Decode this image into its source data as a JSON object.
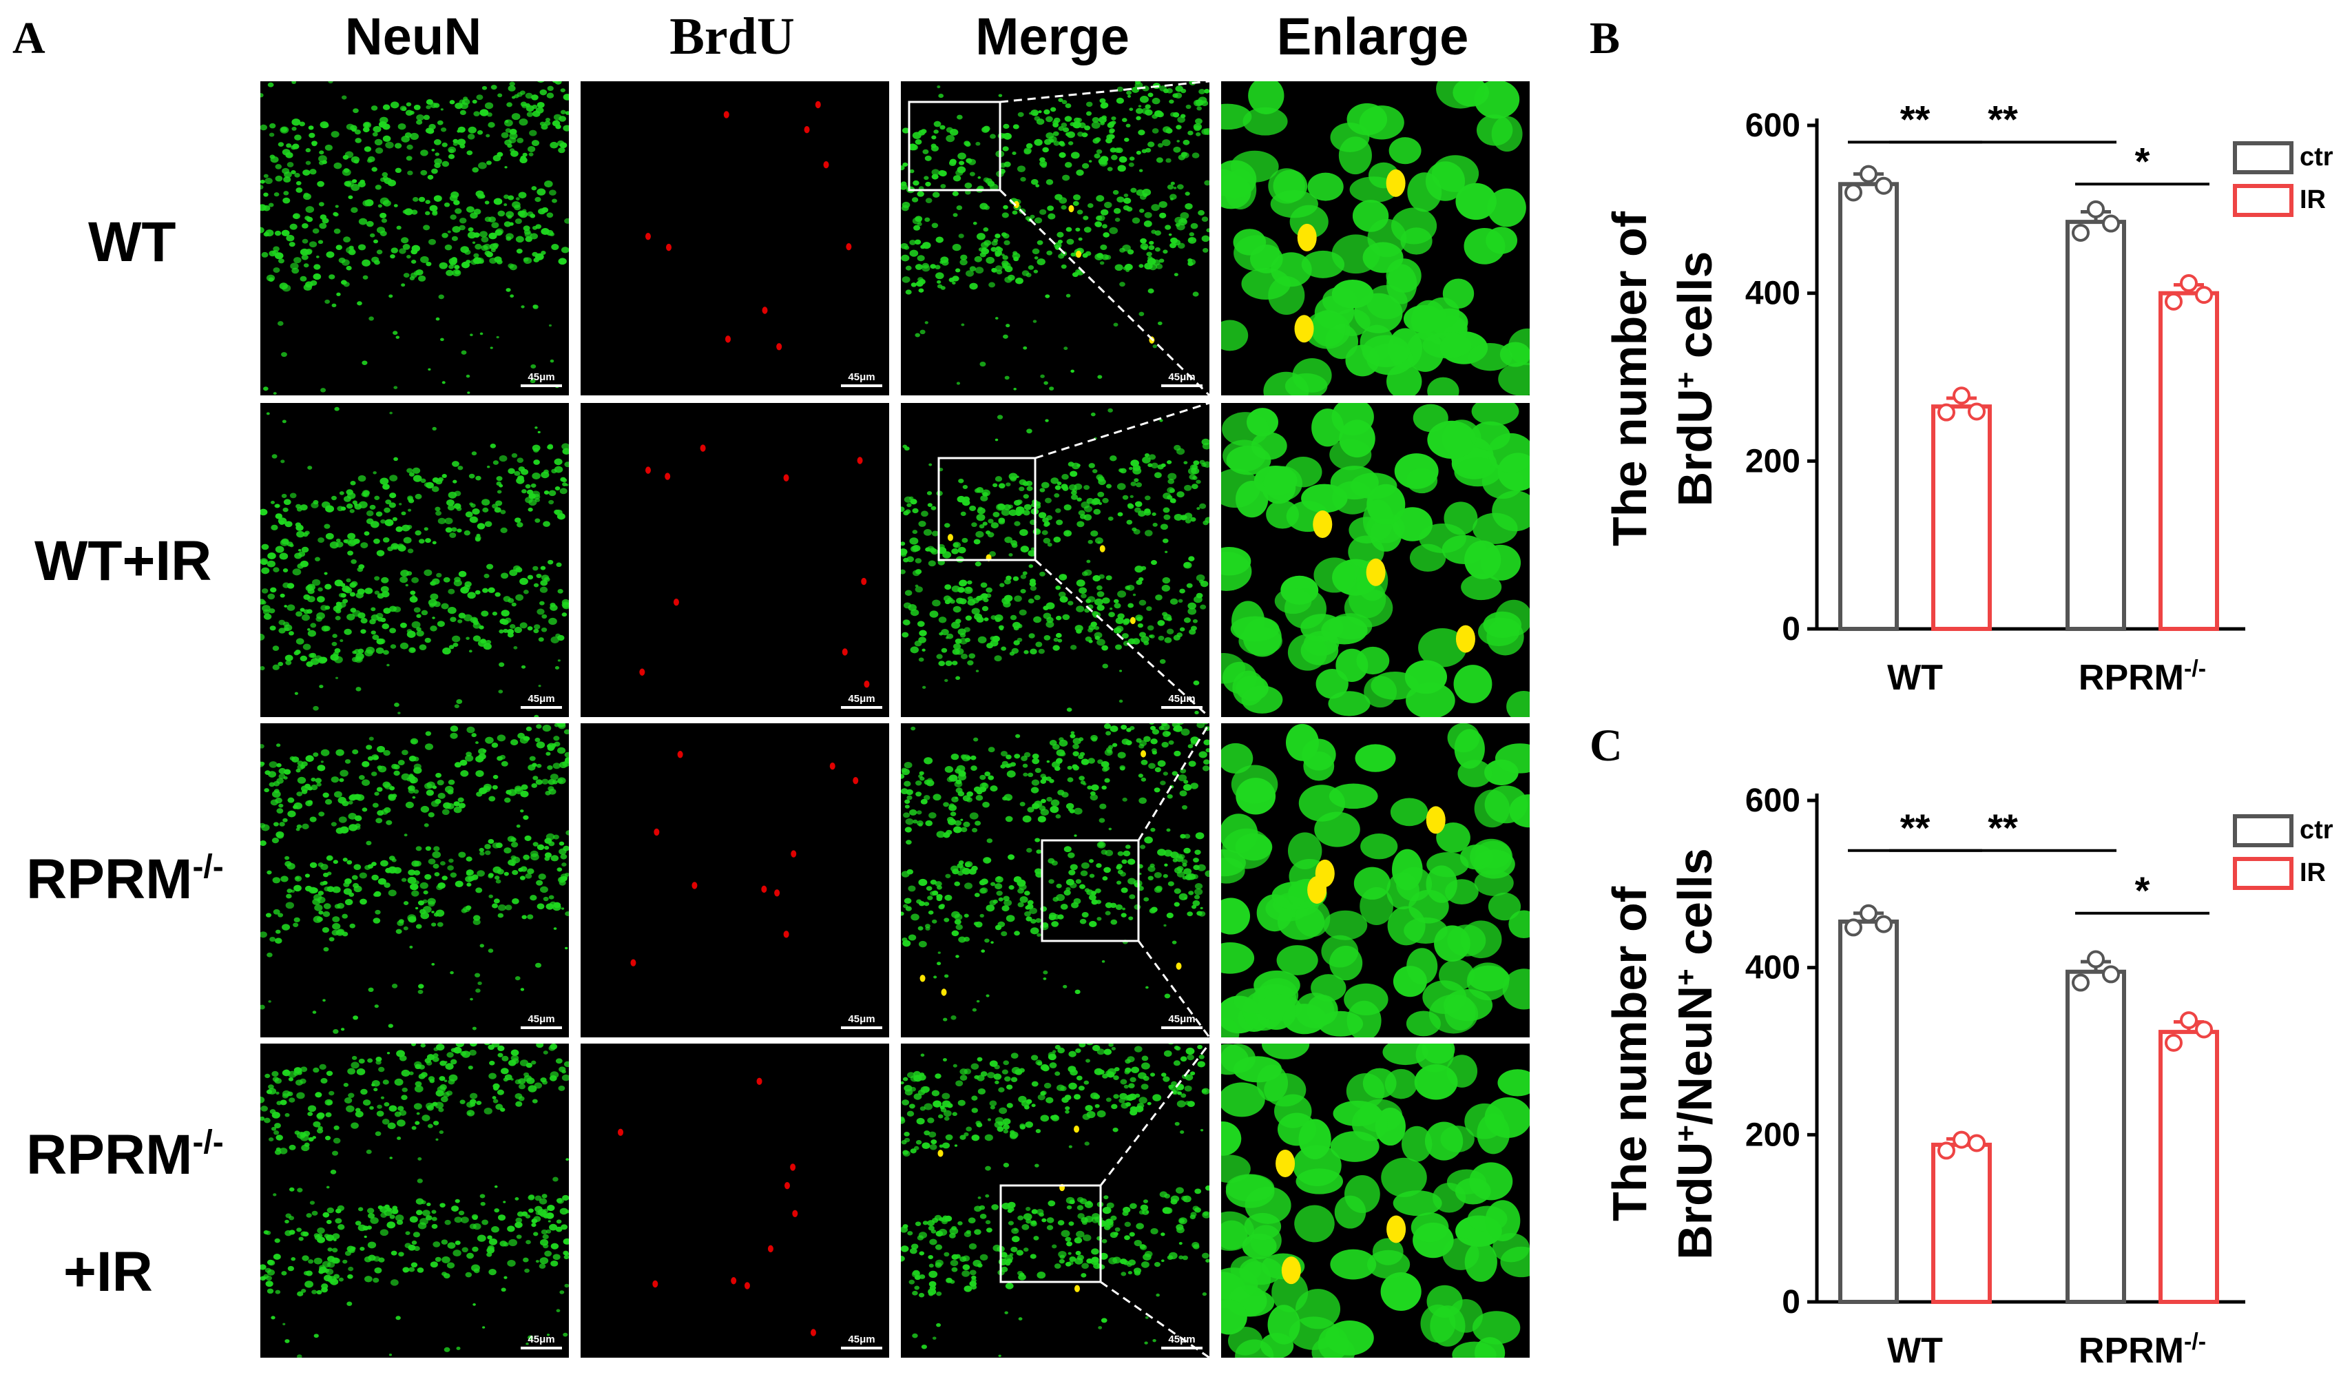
{
  "figure": {
    "panel_letters": {
      "a": "A",
      "b": "B",
      "c": "C"
    },
    "columns": [
      "NeuN",
      "BrdU",
      "Merge",
      "Enlarge"
    ],
    "rows": [
      {
        "label": "WT",
        "sup": "",
        "label2": ""
      },
      {
        "label": "WT+IR",
        "sup": "",
        "label2": ""
      },
      {
        "label": "RPRM",
        "sup": "-/-",
        "label2": ""
      },
      {
        "label": "RPRM",
        "sup": "-/-",
        "label2": "+IR"
      }
    ],
    "scale_bar": "45μm",
    "micrograph_colors": {
      "neun": "#1fd81f",
      "brdu": "#e00000",
      "merge_overlap": "#ffe600",
      "background": "#000000"
    }
  },
  "chart_data": [
    {
      "type": "bar",
      "panel": "B",
      "ylabel_line1": "The number of",
      "ylabel_line2_parts": [
        "BrdU",
        "+",
        " cells"
      ],
      "groups": [
        {
          "name": "WT",
          "sup": ""
        },
        {
          "name": "RPRM",
          "sup": "-/-"
        }
      ],
      "series": [
        {
          "name": "ctr",
          "color": "#555555",
          "values": [
            530,
            485
          ],
          "sem": [
            12,
            12
          ],
          "points": [
            [
              542,
              520,
              528
            ],
            [
              500,
              472,
              483
            ]
          ]
        },
        {
          "name": "IR",
          "color": "#ee4444",
          "values": [
            265,
            400
          ],
          "sem": [
            10,
            10
          ],
          "points": [
            [
              278,
              258,
              259
            ],
            [
              412,
              390,
              398
            ]
          ]
        }
      ],
      "yticks": [
        0,
        200,
        400,
        600
      ],
      "ylim": [
        0,
        600
      ],
      "significance": [
        {
          "label": "**",
          "from": "WT-ctr",
          "to": "WT-IR",
          "y": 580
        },
        {
          "label": "**",
          "from": "WT-ctr",
          "to": "RPRM-ctr",
          "y": 580
        },
        {
          "label": "*",
          "from": "RPRM-ctr",
          "to": "RPRM-IR",
          "y": 530
        }
      ],
      "legend_position": "top-right"
    },
    {
      "type": "bar",
      "panel": "C",
      "ylabel_line1": "The number of",
      "ylabel_line2_parts": [
        "BrdU",
        "+",
        "/NeuN",
        "+",
        " cells"
      ],
      "groups": [
        {
          "name": "WT",
          "sup": ""
        },
        {
          "name": "RPRM",
          "sup": "-/-"
        }
      ],
      "series": [
        {
          "name": "ctr",
          "color": "#555555",
          "values": [
            455,
            395
          ],
          "sem": [
            10,
            12
          ],
          "points": [
            [
              465,
              448,
              452
            ],
            [
              410,
              382,
              392
            ]
          ]
        },
        {
          "name": "IR",
          "color": "#ee4444",
          "values": [
            188,
            323
          ],
          "sem": [
            7,
            12
          ],
          "points": [
            [
              194,
              181,
              190
            ],
            [
              337,
              310,
              326
            ]
          ]
        }
      ],
      "yticks": [
        0,
        200,
        400,
        600
      ],
      "ylim": [
        0,
        600
      ],
      "significance": [
        {
          "label": "**",
          "from": "WT-ctr",
          "to": "WT-IR",
          "y": 540
        },
        {
          "label": "**",
          "from": "WT-ctr",
          "to": "RPRM-ctr",
          "y": 540
        },
        {
          "label": "*",
          "from": "RPRM-ctr",
          "to": "RPRM-IR",
          "y": 465
        }
      ],
      "legend_position": "top-right"
    }
  ]
}
